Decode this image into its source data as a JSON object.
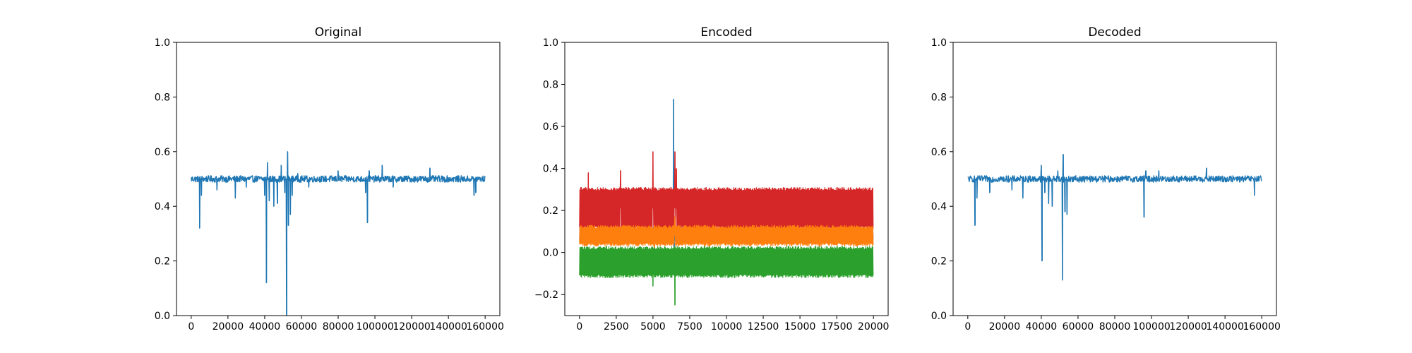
{
  "chart_data": [
    {
      "type": "line",
      "title": "Original",
      "xlabel": "",
      "ylabel": "",
      "xlim": [
        -8000,
        168000
      ],
      "ylim": [
        0.0,
        1.0
      ],
      "xticks": [
        0,
        20000,
        40000,
        60000,
        80000,
        100000,
        120000,
        140000,
        160000
      ],
      "yticks": [
        0.0,
        0.2,
        0.4,
        0.6,
        0.8,
        1.0
      ],
      "xtick_labels": [
        "0",
        "20000",
        "40000",
        "60000",
        "80000",
        "100000",
        "120000",
        "140000",
        "160000"
      ],
      "ytick_labels": [
        "0.0",
        "0.2",
        "0.4",
        "0.6",
        "0.8",
        "1.0"
      ],
      "grid": false,
      "series": [
        {
          "color": "#1f77b4",
          "baseline": 0.5,
          "band": 0.012,
          "x_start": 0,
          "x_end": 160000,
          "spikes": [
            [
              4600,
              0.32
            ],
            [
              5600,
              0.44
            ],
            [
              14000,
              0.46
            ],
            [
              24000,
              0.43
            ],
            [
              30000,
              0.47
            ],
            [
              40000,
              0.44
            ],
            [
              41000,
              0.12
            ],
            [
              41500,
              0.56
            ],
            [
              42500,
              0.42
            ],
            [
              45000,
              0.4
            ],
            [
              47000,
              0.41
            ],
            [
              49000,
              0.55
            ],
            [
              51000,
              0.45
            ],
            [
              52000,
              0.0
            ],
            [
              52500,
              0.6
            ],
            [
              53000,
              0.33
            ],
            [
              54000,
              0.37
            ],
            [
              55000,
              0.44
            ],
            [
              58000,
              0.52
            ],
            [
              64000,
              0.47
            ],
            [
              80000,
              0.53
            ],
            [
              95000,
              0.45
            ],
            [
              96000,
              0.34
            ],
            [
              97000,
              0.53
            ],
            [
              104000,
              0.55
            ],
            [
              110000,
              0.47
            ],
            [
              130000,
              0.54
            ],
            [
              154000,
              0.44
            ],
            [
              155000,
              0.45
            ]
          ]
        }
      ]
    },
    {
      "type": "line",
      "title": "Encoded",
      "xlabel": "",
      "ylabel": "",
      "xlim": [
        -1000,
        21000
      ],
      "ylim": [
        -0.3,
        1.0
      ],
      "xticks": [
        0,
        2500,
        5000,
        7500,
        10000,
        12500,
        15000,
        17500,
        20000
      ],
      "yticks": [
        -0.2,
        0.0,
        0.2,
        0.4,
        0.6,
        0.8,
        1.0
      ],
      "xtick_labels": [
        "0",
        "2500",
        "5000",
        "7500",
        "10000",
        "12500",
        "15000",
        "17500",
        "20000"
      ],
      "ytick_labels": [
        "−0.2",
        "0.0",
        "0.2",
        "0.4",
        "0.6",
        "0.8",
        "1.0"
      ],
      "grid": false,
      "series": [
        {
          "color": "#1f77b4",
          "x_start": 0,
          "x_end": 20000,
          "low": 0.05,
          "high": 0.12,
          "spikes": [
            [
              6400,
              0.73
            ],
            [
              6450,
              -0.05
            ]
          ]
        },
        {
          "color": "#d62728",
          "x_start": 0,
          "x_end": 20000,
          "low": 0.11,
          "high": 0.31,
          "spikes": [
            [
              600,
              0.38
            ],
            [
              2800,
              0.39
            ],
            [
              5000,
              0.48
            ],
            [
              5100,
              -0.02
            ],
            [
              6500,
              0.48
            ],
            [
              6600,
              0.4
            ]
          ]
        },
        {
          "color": "#ff7f0e",
          "x_start": 0,
          "x_end": 20000,
          "low": 0.03,
          "high": 0.13,
          "spikes": [
            [
              5100,
              -0.01
            ],
            [
              6500,
              0.17
            ]
          ]
        },
        {
          "color": "#2ca02c",
          "x_start": 0,
          "x_end": 20000,
          "low": -0.12,
          "high": 0.03,
          "spikes": [
            [
              5000,
              -0.16
            ],
            [
              6500,
              -0.25
            ]
          ]
        }
      ]
    },
    {
      "type": "line",
      "title": "Decoded",
      "xlabel": "",
      "ylabel": "",
      "xlim": [
        -8000,
        168000
      ],
      "ylim": [
        0.0,
        1.0
      ],
      "xticks": [
        0,
        20000,
        40000,
        60000,
        80000,
        100000,
        120000,
        140000,
        160000
      ],
      "yticks": [
        0.0,
        0.2,
        0.4,
        0.6,
        0.8,
        1.0
      ],
      "xtick_labels": [
        "0",
        "20000",
        "40000",
        "60000",
        "80000",
        "100000",
        "120000",
        "140000",
        "160000"
      ],
      "ytick_labels": [
        "0.0",
        "0.2",
        "0.4",
        "0.6",
        "0.8",
        "1.0"
      ],
      "grid": false,
      "series": [
        {
          "color": "#1f77b4",
          "baseline": 0.5,
          "band": 0.012,
          "x_start": 0,
          "x_end": 160000,
          "spikes": [
            [
              4000,
              0.33
            ],
            [
              5000,
              0.43
            ],
            [
              12000,
              0.45
            ],
            [
              24000,
              0.46
            ],
            [
              30000,
              0.43
            ],
            [
              40000,
              0.55
            ],
            [
              40500,
              0.2
            ],
            [
              42000,
              0.45
            ],
            [
              44000,
              0.41
            ],
            [
              46000,
              0.4
            ],
            [
              49000,
              0.53
            ],
            [
              51500,
              0.13
            ],
            [
              52000,
              0.59
            ],
            [
              53000,
              0.38
            ],
            [
              54000,
              0.37
            ],
            [
              96000,
              0.36
            ],
            [
              97000,
              0.53
            ],
            [
              104000,
              0.53
            ],
            [
              130000,
              0.54
            ],
            [
              156000,
              0.44
            ]
          ]
        }
      ]
    }
  ]
}
